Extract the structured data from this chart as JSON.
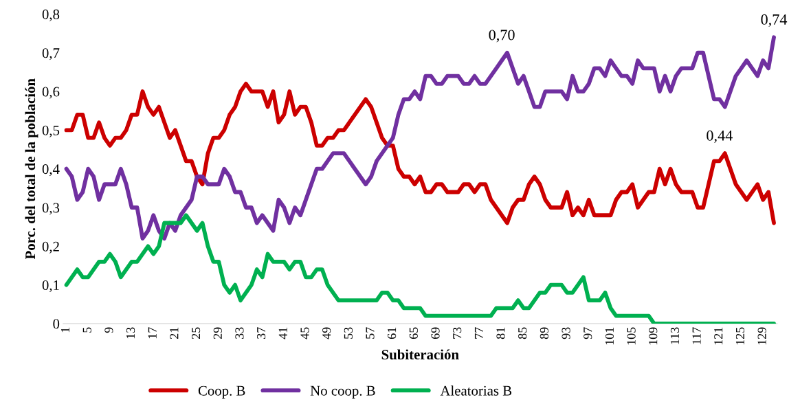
{
  "chart_data": {
    "type": "line",
    "xlabel": "Subiteración",
    "ylabel": "Porc. del total de la población",
    "categories": [
      "1",
      null,
      null,
      null,
      "5",
      null,
      null,
      null,
      "9",
      null,
      null,
      null,
      "13",
      null,
      null,
      null,
      "17",
      null,
      null,
      null,
      "21",
      null,
      null,
      null,
      "25",
      null,
      null,
      null,
      "29",
      null,
      null,
      null,
      "33",
      null,
      null,
      null,
      "37",
      null,
      null,
      null,
      "41",
      null,
      null,
      null,
      "45",
      null,
      null,
      null,
      "49",
      null,
      null,
      null,
      "53",
      null,
      null,
      null,
      "57",
      null,
      null,
      null,
      "61",
      null,
      null,
      null,
      "65",
      null,
      null,
      null,
      "69",
      null,
      null,
      null,
      "73",
      null,
      null,
      null,
      "77",
      null,
      null,
      null,
      "81",
      null,
      null,
      null,
      "85",
      null,
      null,
      null,
      "89",
      null,
      null,
      null,
      "93",
      null,
      null,
      null,
      "97",
      null,
      null,
      null,
      "101",
      null,
      null,
      null,
      "105",
      null,
      null,
      null,
      "109",
      null,
      null,
      null,
      "113",
      null,
      null,
      null,
      "117",
      null,
      null,
      null,
      "121",
      null,
      null,
      null,
      "125",
      null,
      null,
      null,
      "129",
      null,
      null
    ],
    "series": [
      {
        "name": "Coop. B",
        "color": "#cc0000",
        "values": [
          0.5,
          0.5,
          0.54,
          0.54,
          0.48,
          0.48,
          0.52,
          0.48,
          0.46,
          0.48,
          0.48,
          0.5,
          0.54,
          0.54,
          0.6,
          0.56,
          0.54,
          0.56,
          0.52,
          0.48,
          0.5,
          0.46,
          0.42,
          0.42,
          0.38,
          0.36,
          0.44,
          0.48,
          0.48,
          0.5,
          0.54,
          0.56,
          0.6,
          0.62,
          0.6,
          0.6,
          0.6,
          0.56,
          0.6,
          0.52,
          0.54,
          0.6,
          0.54,
          0.56,
          0.56,
          0.52,
          0.46,
          0.46,
          0.48,
          0.48,
          0.5,
          0.5,
          0.52,
          0.54,
          0.56,
          0.58,
          0.56,
          0.52,
          0.48,
          0.46,
          0.46,
          0.4,
          0.38,
          0.38,
          0.36,
          0.38,
          0.34,
          0.34,
          0.36,
          0.36,
          0.34,
          0.34,
          0.34,
          0.36,
          0.36,
          0.34,
          0.36,
          0.36,
          0.32,
          0.3,
          0.28,
          0.26,
          0.3,
          0.32,
          0.32,
          0.36,
          0.38,
          0.36,
          0.32,
          0.3,
          0.3,
          0.3,
          0.34,
          0.28,
          0.3,
          0.28,
          0.32,
          0.28,
          0.28,
          0.28,
          0.28,
          0.32,
          0.34,
          0.34,
          0.36,
          0.3,
          0.32,
          0.34,
          0.34,
          0.4,
          0.36,
          0.4,
          0.36,
          0.34,
          0.34,
          0.34,
          0.3,
          0.3,
          0.36,
          0.42,
          0.42,
          0.44,
          0.4,
          0.36,
          0.34,
          0.32,
          0.34,
          0.36,
          0.32,
          0.34,
          0.26
        ]
      },
      {
        "name": "No coop. B",
        "color": "#7030a0",
        "values": [
          0.4,
          0.38,
          0.32,
          0.34,
          0.4,
          0.38,
          0.32,
          0.36,
          0.36,
          0.36,
          0.4,
          0.36,
          0.3,
          0.3,
          0.22,
          0.24,
          0.28,
          0.24,
          0.22,
          0.26,
          0.24,
          0.28,
          0.3,
          0.32,
          0.38,
          0.38,
          0.36,
          0.36,
          0.36,
          0.4,
          0.38,
          0.34,
          0.34,
          0.3,
          0.3,
          0.26,
          0.28,
          0.26,
          0.24,
          0.32,
          0.3,
          0.26,
          0.3,
          0.28,
          0.32,
          0.36,
          0.4,
          0.4,
          0.42,
          0.44,
          0.44,
          0.44,
          0.42,
          0.4,
          0.38,
          0.36,
          0.38,
          0.42,
          0.44,
          0.46,
          0.48,
          0.54,
          0.58,
          0.58,
          0.6,
          0.58,
          0.64,
          0.64,
          0.62,
          0.62,
          0.64,
          0.64,
          0.64,
          0.62,
          0.62,
          0.64,
          0.62,
          0.62,
          0.64,
          0.66,
          0.68,
          0.7,
          0.66,
          0.62,
          0.64,
          0.6,
          0.56,
          0.56,
          0.6,
          0.6,
          0.6,
          0.6,
          0.58,
          0.64,
          0.6,
          0.6,
          0.62,
          0.66,
          0.66,
          0.64,
          0.68,
          0.66,
          0.64,
          0.64,
          0.62,
          0.68,
          0.66,
          0.66,
          0.66,
          0.6,
          0.64,
          0.6,
          0.64,
          0.66,
          0.66,
          0.66,
          0.7,
          0.7,
          0.64,
          0.58,
          0.58,
          0.56,
          0.6,
          0.64,
          0.66,
          0.68,
          0.66,
          0.64,
          0.68,
          0.66,
          0.74
        ]
      },
      {
        "name": "Aleatorias B",
        "color": "#00b050",
        "values": [
          0.1,
          0.12,
          0.14,
          0.12,
          0.12,
          0.14,
          0.16,
          0.16,
          0.18,
          0.16,
          0.12,
          0.14,
          0.16,
          0.16,
          0.18,
          0.2,
          0.18,
          0.2,
          0.26,
          0.26,
          0.26,
          0.26,
          0.28,
          0.26,
          0.24,
          0.26,
          0.2,
          0.16,
          0.16,
          0.1,
          0.08,
          0.1,
          0.06,
          0.08,
          0.1,
          0.14,
          0.12,
          0.18,
          0.16,
          0.16,
          0.16,
          0.14,
          0.16,
          0.16,
          0.12,
          0.12,
          0.14,
          0.14,
          0.1,
          0.08,
          0.06,
          0.06,
          0.06,
          0.06,
          0.06,
          0.06,
          0.06,
          0.06,
          0.08,
          0.08,
          0.06,
          0.06,
          0.04,
          0.04,
          0.04,
          0.04,
          0.02,
          0.02,
          0.02,
          0.02,
          0.02,
          0.02,
          0.02,
          0.02,
          0.02,
          0.02,
          0.02,
          0.02,
          0.02,
          0.04,
          0.04,
          0.04,
          0.04,
          0.06,
          0.04,
          0.04,
          0.06,
          0.08,
          0.08,
          0.1,
          0.1,
          0.1,
          0.08,
          0.08,
          0.1,
          0.12,
          0.06,
          0.06,
          0.06,
          0.08,
          0.04,
          0.02,
          0.02,
          0.02,
          0.02,
          0.02,
          0.02,
          0.02,
          0,
          0,
          0,
          0,
          0,
          0,
          0,
          0,
          0,
          0,
          0,
          0,
          0,
          0,
          0,
          0,
          0,
          0,
          0,
          0,
          0,
          0,
          0
        ]
      }
    ],
    "ylim": [
      0,
      0.8
    ],
    "yticks": [
      {
        "value": 0,
        "label": "0"
      },
      {
        "value": 0.1,
        "label": "0,1"
      },
      {
        "value": 0.2,
        "label": "0,2"
      },
      {
        "value": 0.3,
        "label": "0,3"
      },
      {
        "value": 0.4,
        "label": "0,4"
      },
      {
        "value": 0.5,
        "label": "0,5"
      },
      {
        "value": 0.6,
        "label": "0,6"
      },
      {
        "value": 0.7,
        "label": "0,7"
      },
      {
        "value": 0.8,
        "label": "0,8"
      }
    ],
    "annotations": [
      {
        "text": "0,70",
        "x": "81",
        "y": 0.7
      },
      {
        "text": "0,74",
        "y": 0.74
      },
      {
        "text": "0,44",
        "x": "121",
        "y": 0.44
      }
    ],
    "grid": false,
    "legend": "bottom",
    "marker": "none",
    "line_style": "solid"
  }
}
